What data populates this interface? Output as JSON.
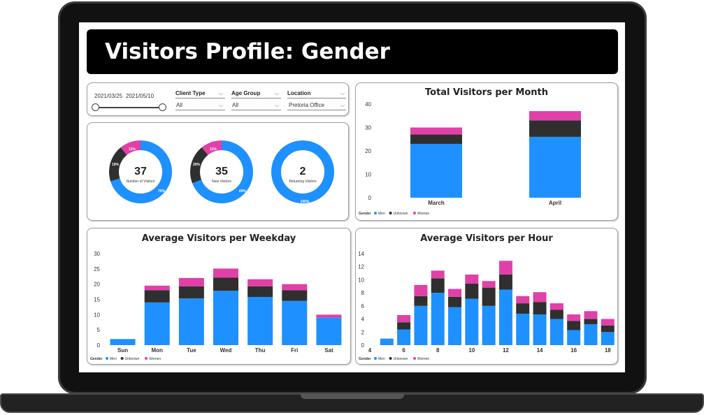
{
  "title": "Visitors Profile: Gender",
  "colors": {
    "men": "#1e90ff",
    "unknown": "#2f2f2f",
    "women": "#e040a8",
    "ring_bg": "#1e90ff"
  },
  "filters": {
    "date_start": "2021/03/25",
    "date_end": "2021/05/10",
    "client_type": {
      "label": "Client Type",
      "value": "All"
    },
    "age_group": {
      "label": "Age Group",
      "value": "All"
    },
    "location": {
      "label": "Location",
      "value": "Pretoria Office"
    }
  },
  "kpis": [
    {
      "value": "37",
      "label": "Number of Visitors",
      "men_pct": 70,
      "unknown_pct": 19,
      "women_pct": 11,
      "pct_labels": [
        "70%",
        "19%",
        "11%"
      ]
    },
    {
      "value": "35",
      "label": "New Visitors",
      "men_pct": 69,
      "unknown_pct": 20,
      "women_pct": 11,
      "pct_labels": [
        "69%",
        "20%",
        "11%"
      ]
    },
    {
      "value": "2",
      "label": "Returning Visitors",
      "men_pct": 100,
      "unknown_pct": 0,
      "women_pct": 0,
      "pct_labels": [
        "100%"
      ]
    }
  ],
  "legend": {
    "title": "Gender",
    "items": [
      "Men",
      "Unknown",
      "Women"
    ]
  },
  "chart_data": [
    {
      "type": "bar",
      "title": "Total Visitors per Month",
      "categories": [
        "March",
        "April"
      ],
      "series": [
        {
          "name": "Men",
          "values": [
            23,
            26
          ]
        },
        {
          "name": "Unknown",
          "values": [
            4,
            7
          ]
        },
        {
          "name": "Women",
          "values": [
            3,
            4
          ]
        }
      ],
      "ylim": [
        0,
        40
      ],
      "yticks": [
        0,
        10,
        20,
        30,
        40
      ],
      "legend_position": "bottom-left"
    },
    {
      "type": "bar",
      "title": "Average Visitors per Weekday",
      "categories": [
        "Sun",
        "Mon",
        "Tue",
        "Wed",
        "Thu",
        "Fri",
        "Sat"
      ],
      "series": [
        {
          "name": "Men",
          "values": [
            2,
            14,
            15.3,
            17.8,
            15.8,
            14.5,
            9
          ]
        },
        {
          "name": "Unknown",
          "values": [
            0,
            4,
            4,
            4.3,
            3.5,
            3.5,
            0
          ]
        },
        {
          "name": "Women",
          "values": [
            0,
            1.5,
            2.7,
            3,
            2.3,
            2,
            1
          ]
        }
      ],
      "ylim": [
        0,
        30
      ],
      "yticks": [
        0,
        5,
        10,
        15,
        20,
        25,
        30
      ],
      "legend_position": "bottom-left"
    },
    {
      "type": "bar",
      "title": "Average Visitors per Hour",
      "x": [
        5,
        6,
        7,
        8,
        9,
        10,
        11,
        12,
        13,
        14,
        15,
        16,
        17,
        18
      ],
      "xticks": [
        4,
        6,
        8,
        10,
        12,
        14,
        16,
        18
      ],
      "series": [
        {
          "name": "Men",
          "values": [
            1,
            2.4,
            6,
            8,
            5.8,
            7.1,
            6,
            8.5,
            4.8,
            4.7,
            4,
            2.3,
            3.2,
            2
          ]
        },
        {
          "name": "Unknown",
          "values": [
            0,
            1.1,
            1.5,
            2.2,
            1.6,
            2.3,
            2.8,
            2.3,
            1.6,
            1.9,
            1.4,
            1.4,
            0.8,
            1
          ]
        },
        {
          "name": "Women",
          "values": [
            0,
            1.1,
            1.7,
            1.2,
            1.2,
            1.4,
            1,
            2.1,
            1.1,
            1.5,
            1,
            1,
            1.2,
            1
          ]
        }
      ],
      "ylim": [
        0,
        14
      ],
      "yticks": [
        0,
        2,
        4,
        6,
        8,
        10,
        12,
        14
      ],
      "legend_position": "bottom-left"
    }
  ]
}
